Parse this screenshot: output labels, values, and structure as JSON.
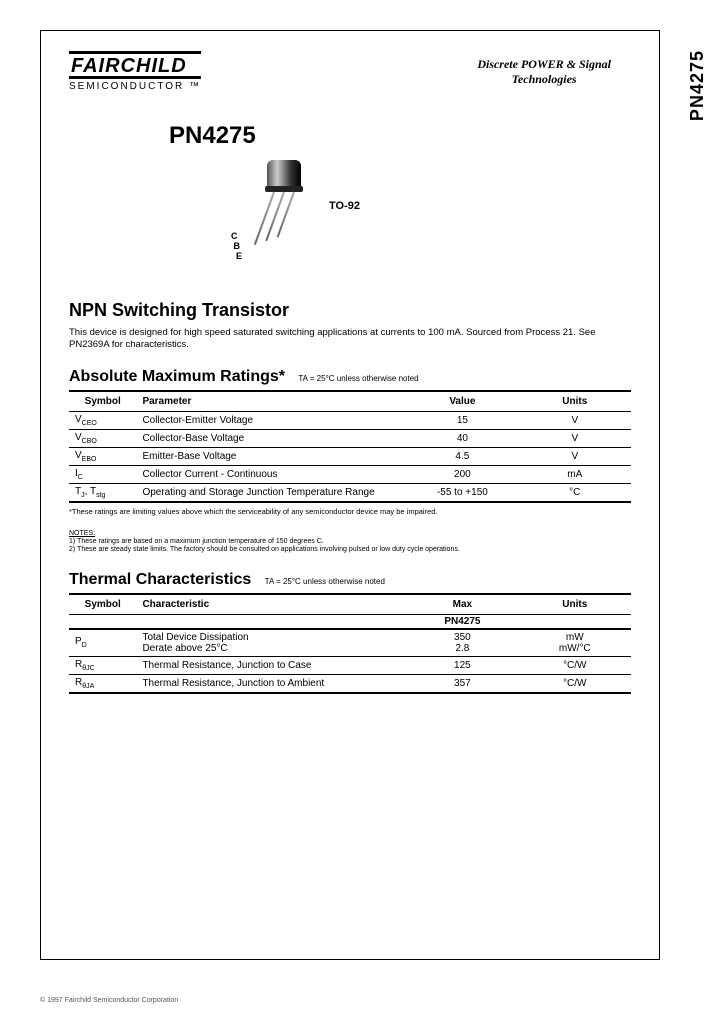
{
  "side_label": "PN4275",
  "logo": {
    "top": "FAIRCHILD",
    "bottom": "SEMICONDUCTOR ™"
  },
  "header_right": {
    "line1": "Discrete POWER & Signal",
    "line2": "Technologies"
  },
  "part_number": "PN4275",
  "package_name": "TO-92",
  "pin_labels": "C\n B\n  E",
  "main_heading": "NPN Switching Transistor",
  "description": "This device is designed for high speed saturated switching applications at currents to 100 mA. Sourced from Process 21. See PN2369A for characteristics.",
  "amr": {
    "title": "Absolute Maximum Ratings*",
    "note_inline": "TA = 25°C unless otherwise noted",
    "columns": [
      "Symbol",
      "Parameter",
      "Value",
      "Units"
    ],
    "rows": [
      [
        "V_CEO",
        "Collector-Emitter Voltage",
        "15",
        "V"
      ],
      [
        "V_CBO",
        "Collector-Base Voltage",
        "40",
        "V"
      ],
      [
        "V_EBO",
        "Emitter-Base Voltage",
        "4.5",
        "V"
      ],
      [
        "I_C",
        "Collector Current - Continuous",
        "200",
        "mA"
      ],
      [
        "T_J, T_stg",
        "Operating and Storage Junction Temperature Range",
        "-55 to +150",
        "°C"
      ]
    ],
    "footnote": "*These ratings are limiting values above which the serviceability of any semiconductor device may be impaired.",
    "notes_title": "NOTES:",
    "notes": [
      "1) These ratings are based on a maximum junction temperature of 150 degrees C.",
      "2) These are steady state limits. The factory should be consulted on applications involving pulsed or low duty cycle operations."
    ]
  },
  "thermal": {
    "title": "Thermal Characteristics",
    "note_inline": "TA = 25°C unless otherwise noted",
    "columns": [
      "Symbol",
      "Characteristic",
      "Max",
      "Units"
    ],
    "subhead": "PN4275",
    "rows": [
      [
        "P_D",
        "Total Device Dissipation\nDerate above 25°C",
        "350\n2.8",
        "mW\nmW/°C"
      ],
      [
        "R_θJC",
        "Thermal Resistance, Junction to Case",
        "125",
        "°C/W"
      ],
      [
        "R_θJA",
        "Thermal Resistance, Junction to Ambient",
        "357",
        "°C/W"
      ]
    ]
  },
  "copyright": "© 1997 Fairchild Semiconductor Corporation"
}
